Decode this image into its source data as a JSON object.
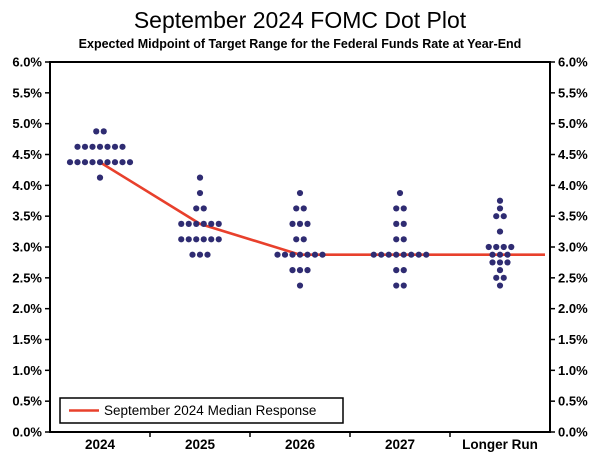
{
  "chart_data": {
    "type": "scatter",
    "title": "September 2024 FOMC Dot Plot",
    "subtitle": "Expected Midpoint of Target Range for the Federal Funds Rate at Year-End",
    "categories": [
      "2024",
      "2025",
      "2026",
      "2027",
      "Longer Run"
    ],
    "ylim": [
      0.0,
      6.0
    ],
    "ytick_step": 0.5,
    "ytick_labels": [
      "0.0%",
      "0.5%",
      "1.0%",
      "1.5%",
      "2.0%",
      "2.5%",
      "3.0%",
      "3.5%",
      "4.0%",
      "4.5%",
      "5.0%",
      "5.5%",
      "6.0%"
    ],
    "y_axis_sides": "both",
    "grid": false,
    "dot_color": "#2f2c72",
    "median_line_color": "#e8402c",
    "axis_color": "#000000",
    "background_color": "#ffffff",
    "dots": {
      "2024": {
        "4.875": 2,
        "4.625": 7,
        "4.375": 9,
        "4.125": 1
      },
      "2025": {
        "4.125": 1,
        "3.875": 1,
        "3.625": 2,
        "3.375": 6,
        "3.125": 6,
        "2.875": 3
      },
      "2026": {
        "3.875": 1,
        "3.625": 2,
        "3.375": 3,
        "3.125": 2,
        "2.875": 7,
        "2.625": 3,
        "2.375": 1
      },
      "2027": {
        "3.875": 1,
        "3.625": 2,
        "3.375": 2,
        "3.125": 2,
        "2.875": 8,
        "2.625": 2,
        "2.375": 2
      },
      "Longer Run": {
        "3.75": 1,
        "3.625": 1,
        "3.5": 2,
        "3.25": 1,
        "3.0": 4,
        "2.875": 3,
        "2.75": 3,
        "2.625": 1,
        "2.5": 2,
        "2.375": 1
      }
    },
    "median_series": {
      "name": "September 2024 Median Response",
      "values": [
        4.375,
        3.375,
        2.875,
        2.875,
        2.875
      ]
    },
    "legend": {
      "label": "September 2024 Median Response",
      "position": "bottom-left"
    }
  }
}
